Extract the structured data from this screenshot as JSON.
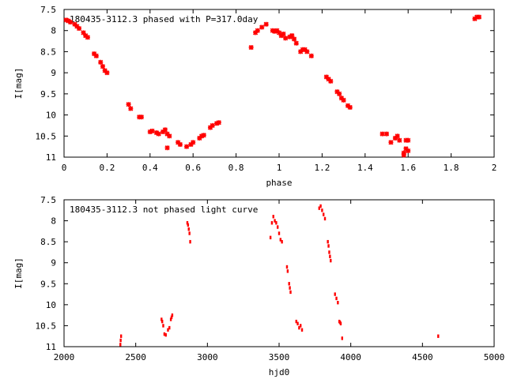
{
  "chart_data": [
    {
      "type": "scatter",
      "title": "180435-3112.3 phased with P=317.0day",
      "xlabel": "phase",
      "ylabel": "I[mag]",
      "xlim": [
        0,
        2
      ],
      "ylim": [
        11,
        7.5
      ],
      "y_inverted": true,
      "grid": false,
      "xticks": [
        "0",
        "0.2",
        "0.4",
        "0.6",
        "0.8",
        "1",
        "1.2",
        "1.4",
        "1.6",
        "1.8",
        "2"
      ],
      "yticks": [
        "7.5",
        "8",
        "8.5",
        "9",
        "9.5",
        "10",
        "10.5",
        "11"
      ],
      "marker_color": "#ff0000",
      "series": [
        {
          "points": [
            [
              0.01,
              7.75
            ],
            [
              0.02,
              7.77
            ],
            [
              0.03,
              7.8
            ],
            [
              0.05,
              7.85
            ],
            [
              0.06,
              7.9
            ],
            [
              0.07,
              7.95
            ],
            [
              0.09,
              8.05
            ],
            [
              0.1,
              8.12
            ],
            [
              0.11,
              8.16
            ],
            [
              0.14,
              8.55
            ],
            [
              0.15,
              8.6
            ],
            [
              0.17,
              8.75
            ],
            [
              0.18,
              8.85
            ],
            [
              0.19,
              8.95
            ],
            [
              0.2,
              9.0
            ],
            [
              0.3,
              9.75
            ],
            [
              0.31,
              9.85
            ],
            [
              0.35,
              10.05
            ],
            [
              0.36,
              10.05
            ],
            [
              0.4,
              10.4
            ],
            [
              0.41,
              10.38
            ],
            [
              0.43,
              10.42
            ],
            [
              0.44,
              10.45
            ],
            [
              0.46,
              10.4
            ],
            [
              0.47,
              10.35
            ],
            [
              0.48,
              10.45
            ],
            [
              0.48,
              10.78
            ],
            [
              0.49,
              10.5
            ],
            [
              0.53,
              10.65
            ],
            [
              0.54,
              10.7
            ],
            [
              0.57,
              10.75
            ],
            [
              0.59,
              10.7
            ],
            [
              0.6,
              10.65
            ],
            [
              0.63,
              10.55
            ],
            [
              0.64,
              10.5
            ],
            [
              0.65,
              10.48
            ],
            [
              0.68,
              10.3
            ],
            [
              0.69,
              10.25
            ],
            [
              0.71,
              10.2
            ],
            [
              0.72,
              10.18
            ],
            [
              0.87,
              8.4
            ],
            [
              0.89,
              8.05
            ],
            [
              0.9,
              8.0
            ],
            [
              0.92,
              7.92
            ],
            [
              0.94,
              7.85
            ],
            [
              0.97,
              8.0
            ],
            [
              0.98,
              8.02
            ],
            [
              0.99,
              8.0
            ],
            [
              1.0,
              8.05
            ],
            [
              1.01,
              8.12
            ],
            [
              1.02,
              8.08
            ],
            [
              1.03,
              8.18
            ],
            [
              1.05,
              8.15
            ],
            [
              1.06,
              8.12
            ],
            [
              1.07,
              8.2
            ],
            [
              1.08,
              8.3
            ],
            [
              1.1,
              8.5
            ],
            [
              1.11,
              8.45
            ],
            [
              1.12,
              8.45
            ],
            [
              1.13,
              8.5
            ],
            [
              1.15,
              8.6
            ],
            [
              1.22,
              9.1
            ],
            [
              1.23,
              9.15
            ],
            [
              1.24,
              9.2
            ],
            [
              1.27,
              9.45
            ],
            [
              1.28,
              9.5
            ],
            [
              1.29,
              9.6
            ],
            [
              1.3,
              9.65
            ],
            [
              1.32,
              9.78
            ],
            [
              1.33,
              9.82
            ],
            [
              1.48,
              10.45
            ],
            [
              1.5,
              10.45
            ],
            [
              1.52,
              10.65
            ],
            [
              1.54,
              10.55
            ],
            [
              1.55,
              10.5
            ],
            [
              1.56,
              10.6
            ],
            [
              1.58,
              10.9
            ],
            [
              1.58,
              10.95
            ],
            [
              1.59,
              10.8
            ],
            [
              1.59,
              10.6
            ],
            [
              1.6,
              10.6
            ],
            [
              1.6,
              10.85
            ],
            [
              1.91,
              7.72
            ],
            [
              1.92,
              7.68
            ],
            [
              1.93,
              7.68
            ]
          ]
        }
      ]
    },
    {
      "type": "scatter",
      "title": "180435-3112.3 not phased light curve",
      "xlabel": "hjd0",
      "ylabel": "I[mag]",
      "xlim": [
        2000,
        5000
      ],
      "ylim": [
        11,
        7.5
      ],
      "y_inverted": true,
      "grid": false,
      "xticks": [
        "2000",
        "2500",
        "3000",
        "3500",
        "4000",
        "4500",
        "5000"
      ],
      "yticks": [
        "7.5",
        "8",
        "8.5",
        "9",
        "9.5",
        "10",
        "10.5",
        "11"
      ],
      "marker_color": "#ff0000",
      "series": [
        {
          "points": [
            [
              2393,
              10.95
            ],
            [
              2395,
              10.85
            ],
            [
              2398,
              10.75
            ],
            [
              2680,
              10.35
            ],
            [
              2685,
              10.4
            ],
            [
              2692,
              10.5
            ],
            [
              2700,
              10.7
            ],
            [
              2710,
              10.72
            ],
            [
              2725,
              10.6
            ],
            [
              2735,
              10.55
            ],
            [
              2745,
              10.35
            ],
            [
              2750,
              10.3
            ],
            [
              2755,
              10.25
            ],
            [
              2860,
              8.05
            ],
            [
              2865,
              8.1
            ],
            [
              2870,
              8.2
            ],
            [
              2875,
              8.3
            ],
            [
              2880,
              8.5
            ],
            [
              3440,
              8.4
            ],
            [
              3450,
              8.05
            ],
            [
              3460,
              7.9
            ],
            [
              3470,
              8.0
            ],
            [
              3480,
              8.05
            ],
            [
              3490,
              8.15
            ],
            [
              3500,
              8.3
            ],
            [
              3510,
              8.45
            ],
            [
              3520,
              8.5
            ],
            [
              3555,
              9.1
            ],
            [
              3560,
              9.2
            ],
            [
              3570,
              9.5
            ],
            [
              3575,
              9.6
            ],
            [
              3580,
              9.7
            ],
            [
              3620,
              10.4
            ],
            [
              3630,
              10.45
            ],
            [
              3640,
              10.55
            ],
            [
              3650,
              10.5
            ],
            [
              3660,
              10.6
            ],
            [
              3780,
              7.7
            ],
            [
              3790,
              7.65
            ],
            [
              3800,
              7.75
            ],
            [
              3810,
              7.85
            ],
            [
              3820,
              7.95
            ],
            [
              3840,
              8.5
            ],
            [
              3845,
              8.6
            ],
            [
              3850,
              8.75
            ],
            [
              3855,
              8.85
            ],
            [
              3860,
              8.95
            ],
            [
              3890,
              9.75
            ],
            [
              3900,
              9.85
            ],
            [
              3910,
              9.95
            ],
            [
              3920,
              10.4
            ],
            [
              3925,
              10.42
            ],
            [
              3930,
              10.45
            ],
            [
              3940,
              10.8
            ],
            [
              4610,
              10.75
            ]
          ]
        }
      ]
    }
  ]
}
